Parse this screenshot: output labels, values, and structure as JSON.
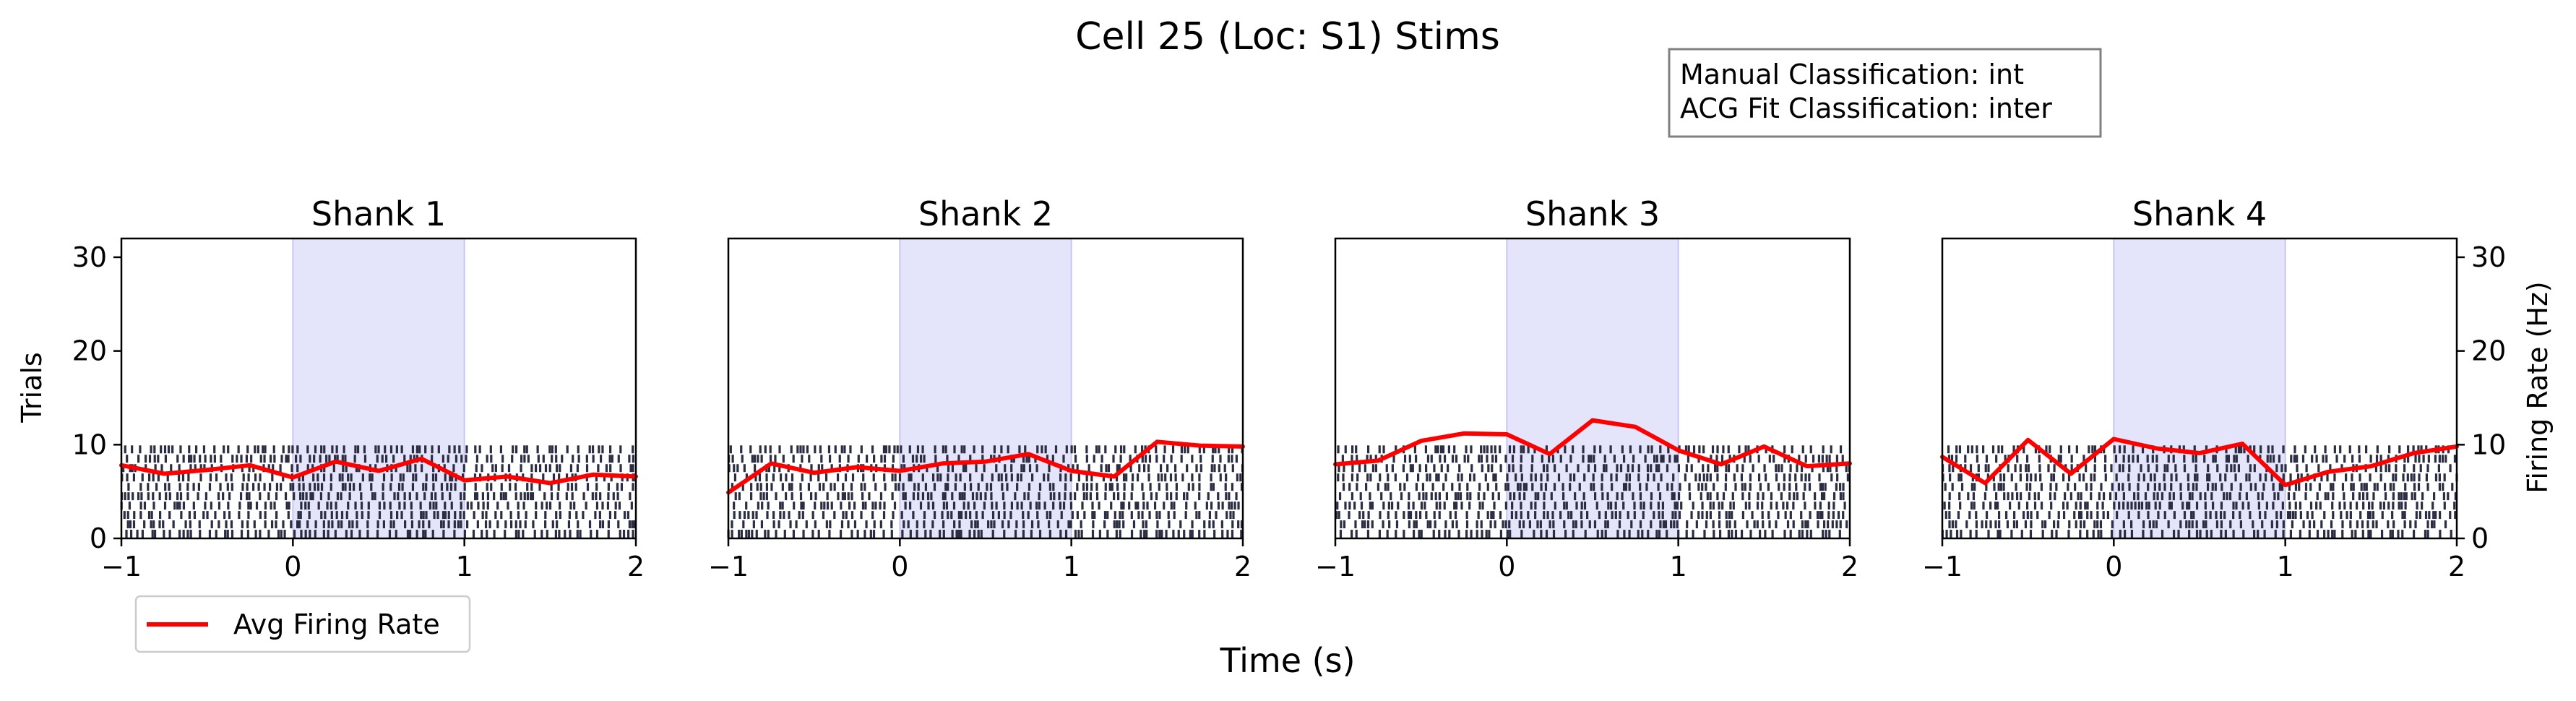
{
  "figure": {
    "title": "Cell 25 (Loc: S1) Stims",
    "xlabel": "Time (s)",
    "left_ylabel": "Trials",
    "right_ylabel": "Firing Rate (Hz)",
    "info_box": {
      "manual_label": "Manual Classification: int",
      "acg_label": "ACG Fit Classification: inter"
    },
    "legend": {
      "label": "Avg Firing Rate",
      "placement": "lower-left, below first panel"
    }
  },
  "colors": {
    "firing_rate": "#ff0000",
    "stim_window": "#e4e4fb",
    "spike": "#2b2d42"
  },
  "chart_data": {
    "type": "raster_with_line",
    "xlim": [
      -1,
      2
    ],
    "xticks": [
      -1,
      0,
      1,
      2
    ],
    "xtick_labels": [
      "−1",
      "0",
      "1",
      "2"
    ],
    "ylim_trials": [
      0,
      32
    ],
    "yticks": [
      0,
      10,
      20,
      30
    ],
    "ylim_rate": [
      0,
      32
    ],
    "stim_window": [
      0,
      1
    ],
    "n_trials": 10,
    "panels": [
      {
        "title": "Shank 1",
        "rate_x": [
          -1.0,
          -0.75,
          -0.5,
          -0.25,
          0.0,
          0.25,
          0.5,
          0.75,
          1.0,
          1.25,
          1.5,
          1.75,
          2.0
        ],
        "rate_y": [
          7.8,
          6.9,
          7.3,
          7.8,
          6.5,
          8.2,
          7.2,
          8.5,
          6.2,
          6.6,
          5.9,
          6.8,
          6.6
        ]
      },
      {
        "title": "Shank 2",
        "rate_x": [
          -1.0,
          -0.75,
          -0.5,
          -0.25,
          0.0,
          0.25,
          0.5,
          0.75,
          1.0,
          1.25,
          1.5,
          1.75,
          2.0
        ],
        "rate_y": [
          4.9,
          8.0,
          7.0,
          7.6,
          7.2,
          8.0,
          8.2,
          9.0,
          7.2,
          6.6,
          10.3,
          9.9,
          9.8
        ]
      },
      {
        "title": "Shank 3",
        "rate_x": [
          -1.0,
          -0.75,
          -0.5,
          -0.25,
          0.0,
          0.25,
          0.5,
          0.75,
          1.0,
          1.25,
          1.5,
          1.75,
          2.0
        ],
        "rate_y": [
          7.9,
          8.3,
          10.4,
          11.2,
          11.1,
          9.0,
          12.6,
          11.9,
          9.4,
          7.9,
          9.8,
          7.7,
          8.0
        ]
      },
      {
        "title": "Shank 4",
        "rate_x": [
          -1.0,
          -0.75,
          -0.5,
          -0.25,
          0.0,
          0.25,
          0.5,
          0.75,
          1.0,
          1.25,
          1.5,
          1.75,
          2.0
        ],
        "rate_y": [
          8.7,
          5.9,
          10.5,
          6.9,
          10.6,
          9.6,
          9.1,
          10.1,
          5.7,
          7.1,
          7.7,
          9.1,
          9.8
        ]
      }
    ]
  }
}
